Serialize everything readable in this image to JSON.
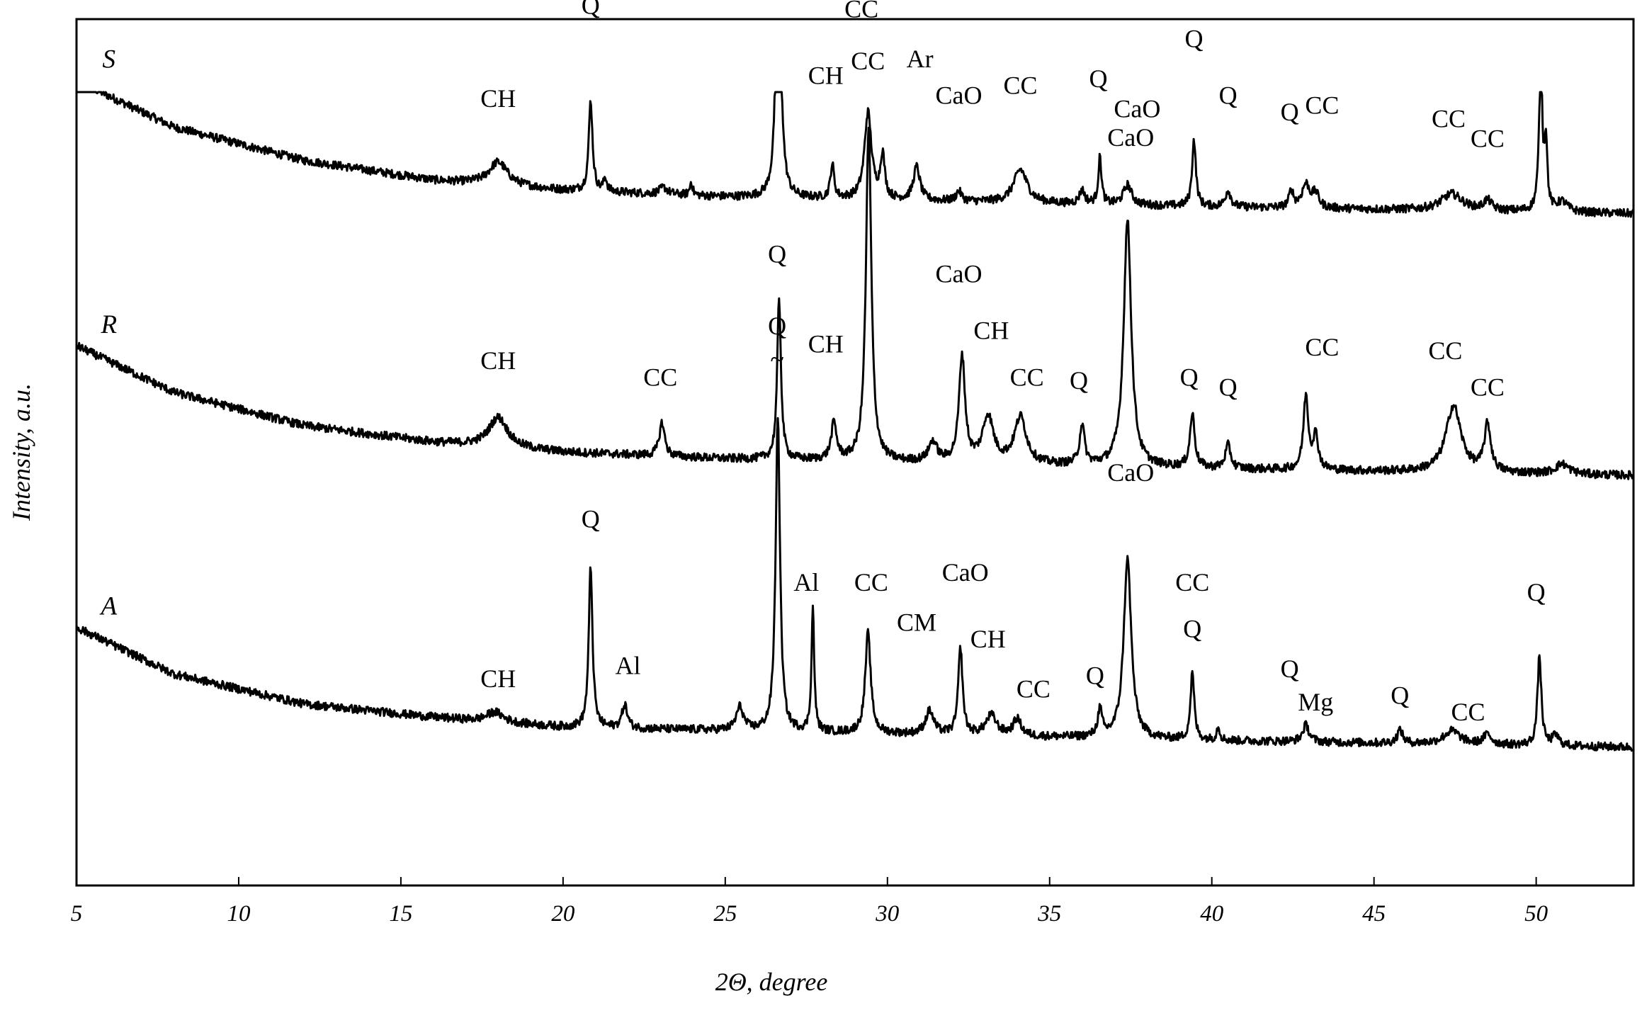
{
  "chart_data": {
    "type": "line",
    "xlabel": "2Θ, degree",
    "ylabel": "Intensity, a.u.",
    "xlim": [
      5,
      53
    ],
    "x_ticks": [
      5,
      10,
      15,
      20,
      25,
      30,
      35,
      40,
      45,
      50
    ],
    "grid": false,
    "line_color": "#000000",
    "series": [
      {
        "name": "S",
        "baseline": [
          [
            5,
            0.62
          ],
          [
            8,
            0.48
          ],
          [
            12,
            0.38
          ],
          [
            16,
            0.32
          ],
          [
            20,
            0.29
          ],
          [
            25,
            0.27
          ],
          [
            30,
            0.26
          ],
          [
            40,
            0.24
          ],
          [
            53,
            0.22
          ]
        ],
        "peaks": [
          {
            "x": 18.0,
            "height": 0.07,
            "width": 0.35
          },
          {
            "x": 20.85,
            "height": 0.27,
            "width": 0.07
          },
          {
            "x": 21.3,
            "height": 0.04,
            "width": 0.06
          },
          {
            "x": 23.1,
            "height": 0.02,
            "width": 0.15
          },
          {
            "x": 23.95,
            "height": 0.04,
            "width": 0.05
          },
          {
            "x": 26.64,
            "height": 0.95,
            "width": 0.08
          },
          {
            "x": 28.3,
            "height": 0.1,
            "width": 0.07
          },
          {
            "x": 29.4,
            "height": 0.26,
            "width": 0.13
          },
          {
            "x": 29.85,
            "height": 0.13,
            "width": 0.08
          },
          {
            "x": 30.9,
            "height": 0.1,
            "width": 0.12
          },
          {
            "x": 32.2,
            "height": 0.03,
            "width": 0.1
          },
          {
            "x": 34.1,
            "height": 0.1,
            "width": 0.25
          },
          {
            "x": 36.0,
            "height": 0.04,
            "width": 0.1
          },
          {
            "x": 36.55,
            "height": 0.14,
            "width": 0.06
          },
          {
            "x": 37.4,
            "height": 0.06,
            "width": 0.15
          },
          {
            "x": 39.45,
            "height": 0.2,
            "width": 0.07
          },
          {
            "x": 40.5,
            "height": 0.05,
            "width": 0.1
          },
          {
            "x": 42.45,
            "height": 0.05,
            "width": 0.08
          },
          {
            "x": 42.9,
            "height": 0.07,
            "width": 0.15
          },
          {
            "x": 43.2,
            "height": 0.04,
            "width": 0.12
          },
          {
            "x": 47.4,
            "height": 0.05,
            "width": 0.4
          },
          {
            "x": 48.5,
            "height": 0.03,
            "width": 0.15
          },
          {
            "x": 50.14,
            "height": 0.45,
            "width": 0.06
          },
          {
            "x": 50.3,
            "height": 0.2,
            "width": 0.05
          },
          {
            "x": 50.8,
            "height": 0.03,
            "width": 0.2
          }
        ],
        "labels": [
          {
            "text": "CH",
            "x": 18.0,
            "y": 0.54
          },
          {
            "text": "Q",
            "x": 20.85,
            "y": 0.82
          },
          {
            "text": "Q",
            "x": 26.64,
            "y": 1.71
          },
          {
            "text": "~",
            "x": 26.64,
            "y": 1.61
          },
          {
            "text": "CH",
            "x": 28.1,
            "y": 0.61
          },
          {
            "text": "CC",
            "x": 29.2,
            "y": 0.81
          },
          {
            "text": "Ar",
            "x": 31.0,
            "y": 0.66
          },
          {
            "text": "CaO",
            "x": 32.2,
            "y": 0.55
          },
          {
            "text": "CC",
            "x": 34.1,
            "y": 0.58
          },
          {
            "text": "Q",
            "x": 36.5,
            "y": 0.6
          },
          {
            "text": "CaO",
            "x": 37.7,
            "y": 0.51
          },
          {
            "text": "Q",
            "x": 39.45,
            "y": 0.72
          },
          {
            "text": "Q",
            "x": 40.5,
            "y": 0.55
          },
          {
            "text": "Q",
            "x": 42.4,
            "y": 0.5
          },
          {
            "text": "CC",
            "x": 43.4,
            "y": 0.52
          },
          {
            "text": "CC",
            "x": 47.3,
            "y": 0.48
          },
          {
            "text": "CC",
            "x": 48.5,
            "y": 0.42
          },
          {
            "text": "Q",
            "x": 50.14,
            "y": 1.18
          }
        ]
      },
      {
        "name": "R",
        "baseline": [
          [
            5,
            0.6
          ],
          [
            8,
            0.46
          ],
          [
            12,
            0.36
          ],
          [
            16,
            0.31
          ],
          [
            20,
            0.28
          ],
          [
            25,
            0.26
          ],
          [
            30,
            0.25
          ],
          [
            40,
            0.23
          ],
          [
            53,
            0.21
          ]
        ],
        "peaks": [
          {
            "x": 18.0,
            "height": 0.09,
            "width": 0.35
          },
          {
            "x": 23.05,
            "height": 0.1,
            "width": 0.1
          },
          {
            "x": 26.66,
            "height": 0.48,
            "width": 0.07
          },
          {
            "x": 28.35,
            "height": 0.11,
            "width": 0.1
          },
          {
            "x": 29.42,
            "height": 1.0,
            "width": 0.1
          },
          {
            "x": 31.4,
            "height": 0.06,
            "width": 0.15
          },
          {
            "x": 32.3,
            "height": 0.32,
            "width": 0.11
          },
          {
            "x": 33.1,
            "height": 0.14,
            "width": 0.2
          },
          {
            "x": 34.1,
            "height": 0.14,
            "width": 0.22
          },
          {
            "x": 36.0,
            "height": 0.12,
            "width": 0.09
          },
          {
            "x": 37.4,
            "height": 0.74,
            "width": 0.14
          },
          {
            "x": 39.4,
            "height": 0.16,
            "width": 0.09
          },
          {
            "x": 40.5,
            "height": 0.07,
            "width": 0.1
          },
          {
            "x": 42.9,
            "height": 0.22,
            "width": 0.09
          },
          {
            "x": 43.2,
            "height": 0.1,
            "width": 0.1
          },
          {
            "x": 47.45,
            "height": 0.2,
            "width": 0.28
          },
          {
            "x": 48.5,
            "height": 0.14,
            "width": 0.12
          },
          {
            "x": 50.8,
            "height": 0.03,
            "width": 0.25
          }
        ],
        "labels": [
          {
            "text": "CH",
            "x": 18.0,
            "y": 0.53
          },
          {
            "text": "CC",
            "x": 23.0,
            "y": 0.48
          },
          {
            "text": "Q",
            "x": 26.6,
            "y": 0.85
          },
          {
            "text": "CH",
            "x": 28.1,
            "y": 0.58
          },
          {
            "text": "CC",
            "x": 29.4,
            "y": 1.43
          },
          {
            "text": "CaO",
            "x": 32.2,
            "y": 0.79
          },
          {
            "text": "CH",
            "x": 33.2,
            "y": 0.62
          },
          {
            "text": "CC",
            "x": 34.3,
            "y": 0.48
          },
          {
            "text": "Q",
            "x": 35.9,
            "y": 0.47
          },
          {
            "text": "CaO",
            "x": 37.5,
            "y": 1.2
          },
          {
            "text": "Q",
            "x": 39.3,
            "y": 0.48
          },
          {
            "text": "Q",
            "x": 40.5,
            "y": 0.45
          },
          {
            "text": "CC",
            "x": 43.4,
            "y": 0.57
          },
          {
            "text": "CC",
            "x": 47.2,
            "y": 0.56
          },
          {
            "text": "CC",
            "x": 48.5,
            "y": 0.45
          }
        ]
      },
      {
        "name": "A",
        "baseline": [
          [
            5,
            0.52
          ],
          [
            8,
            0.38
          ],
          [
            12,
            0.29
          ],
          [
            16,
            0.25
          ],
          [
            20,
            0.22
          ],
          [
            25,
            0.21
          ],
          [
            30,
            0.2
          ],
          [
            40,
            0.18
          ],
          [
            53,
            0.16
          ]
        ],
        "peaks": [
          {
            "x": 17.9,
            "height": 0.03,
            "width": 0.3
          },
          {
            "x": 20.85,
            "height": 0.48,
            "width": 0.07
          },
          {
            "x": 21.9,
            "height": 0.07,
            "width": 0.1
          },
          {
            "x": 25.45,
            "height": 0.07,
            "width": 0.13
          },
          {
            "x": 26.62,
            "height": 0.95,
            "width": 0.08
          },
          {
            "x": 27.7,
            "height": 0.37,
            "width": 0.05
          },
          {
            "x": 29.4,
            "height": 0.3,
            "width": 0.1
          },
          {
            "x": 31.3,
            "height": 0.07,
            "width": 0.15
          },
          {
            "x": 32.25,
            "height": 0.26,
            "width": 0.08
          },
          {
            "x": 33.2,
            "height": 0.06,
            "width": 0.2
          },
          {
            "x": 34.0,
            "height": 0.05,
            "width": 0.15
          },
          {
            "x": 36.55,
            "height": 0.08,
            "width": 0.08
          },
          {
            "x": 37.4,
            "height": 0.54,
            "width": 0.14
          },
          {
            "x": 39.4,
            "height": 0.2,
            "width": 0.07
          },
          {
            "x": 40.2,
            "height": 0.04,
            "width": 0.06
          },
          {
            "x": 42.9,
            "height": 0.05,
            "width": 0.12
          },
          {
            "x": 45.8,
            "height": 0.04,
            "width": 0.1
          },
          {
            "x": 47.4,
            "height": 0.04,
            "width": 0.3
          },
          {
            "x": 48.5,
            "height": 0.03,
            "width": 0.15
          },
          {
            "x": 50.1,
            "height": 0.27,
            "width": 0.07
          },
          {
            "x": 50.6,
            "height": 0.03,
            "width": 0.12
          }
        ],
        "labels": [
          {
            "text": "CH",
            "x": 18.0,
            "y": 0.34
          },
          {
            "text": "Q",
            "x": 20.85,
            "y": 0.82
          },
          {
            "text": "Al",
            "x": 22.0,
            "y": 0.38
          },
          {
            "text": "Q",
            "x": 26.6,
            "y": 1.4
          },
          {
            "text": "~",
            "x": 26.6,
            "y": 1.3
          },
          {
            "text": "Al",
            "x": 27.5,
            "y": 0.63
          },
          {
            "text": "CC",
            "x": 29.5,
            "y": 0.63
          },
          {
            "text": "CM",
            "x": 30.9,
            "y": 0.51
          },
          {
            "text": "CaO",
            "x": 32.4,
            "y": 0.66
          },
          {
            "text": "CH",
            "x": 33.1,
            "y": 0.46
          },
          {
            "text": "CC",
            "x": 34.5,
            "y": 0.31
          },
          {
            "text": "Q",
            "x": 36.4,
            "y": 0.35
          },
          {
            "text": "CaO",
            "x": 37.5,
            "y": 0.96
          },
          {
            "text": "CC",
            "x": 39.4,
            "y": 0.63
          },
          {
            "text": "Q",
            "x": 39.4,
            "y": 0.49
          },
          {
            "text": "Q",
            "x": 42.4,
            "y": 0.37
          },
          {
            "text": "Mg",
            "x": 43.2,
            "y": 0.27
          },
          {
            "text": "Q",
            "x": 45.8,
            "y": 0.29
          },
          {
            "text": "CC",
            "x": 47.9,
            "y": 0.24
          },
          {
            "text": "Q",
            "x": 50.0,
            "y": 0.6
          }
        ]
      }
    ]
  }
}
